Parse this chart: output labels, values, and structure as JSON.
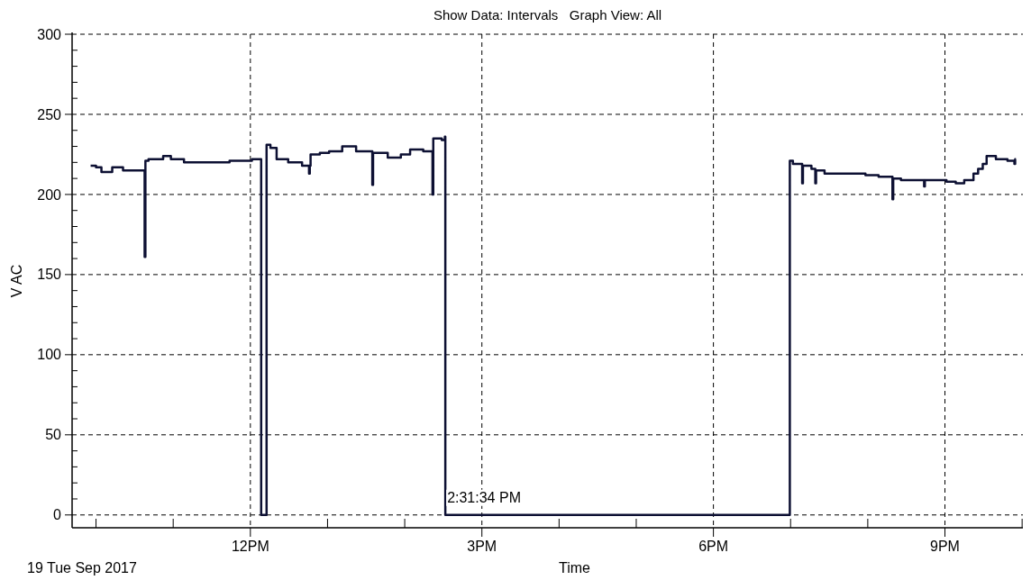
{
  "chart_data": {
    "type": "step",
    "title": "Show Data: Intervals   Graph View: All",
    "xlabel": "Time",
    "ylabel": "V AC",
    "xlim": [
      "2017-09-19T09:41:24",
      "2017-09-19T22:00:36"
    ],
    "ylim": [
      -8,
      300
    ],
    "xticks": [
      {
        "value": "2017-09-19T10:00",
        "label": null
      },
      {
        "value": "2017-09-19T11:00",
        "label": null
      },
      {
        "value": "2017-09-19T12:00",
        "label": "12PM"
      },
      {
        "value": "2017-09-19T13:00",
        "label": null
      },
      {
        "value": "2017-09-19T14:00",
        "label": null
      },
      {
        "value": "2017-09-19T15:00",
        "label": "3PM"
      },
      {
        "value": "2017-09-19T16:00",
        "label": null
      },
      {
        "value": "2017-09-19T17:00",
        "label": null
      },
      {
        "value": "2017-09-19T18:00",
        "label": "6PM"
      },
      {
        "value": "2017-09-19T19:00",
        "label": null
      },
      {
        "value": "2017-09-19T20:00",
        "label": null
      },
      {
        "value": "2017-09-19T21:00",
        "label": "9PM"
      },
      {
        "value": "2017-09-19T22:00",
        "label": null
      }
    ],
    "yticks": [
      0,
      {
        "value": 10,
        "label": null
      },
      {
        "value": 20,
        "label": null
      },
      {
        "value": 30,
        "label": null
      },
      {
        "value": 40,
        "label": null
      },
      50,
      {
        "value": 60,
        "label": null
      },
      {
        "value": 70,
        "label": null
      },
      {
        "value": 80,
        "label": null
      },
      {
        "value": 90,
        "label": null
      },
      100,
      {
        "value": 110,
        "label": null
      },
      {
        "value": 120,
        "label": null
      },
      {
        "value": 130,
        "label": null
      },
      {
        "value": 140,
        "label": null
      },
      150,
      {
        "value": 160,
        "label": null
      },
      {
        "value": 170,
        "label": null
      },
      {
        "value": 180,
        "label": null
      },
      {
        "value": 190,
        "label": null
      },
      200,
      {
        "value": 210,
        "label": null
      },
      {
        "value": 220,
        "label": null
      },
      {
        "value": 230,
        "label": null
      },
      {
        "value": 240,
        "label": null
      },
      250,
      {
        "value": 260,
        "label": null
      },
      {
        "value": 270,
        "label": null
      },
      {
        "value": 280,
        "label": null
      },
      {
        "value": 290,
        "label": null
      },
      300
    ],
    "grid": true,
    "marker": "none",
    "line_style": "solid",
    "series": [
      {
        "color": "#0d1033",
        "x": [
          "2017-09-19T09:55:48",
          "2017-09-19T10:00:00",
          "2017-09-19T10:04:12",
          "2017-09-19T10:12:36",
          "2017-09-19T10:21:00",
          "2017-09-19T10:37:12",
          "2017-09-19T10:37:48",
          "2017-09-19T10:38:24",
          "2017-09-19T10:40:48",
          "2017-09-19T10:52:12",
          "2017-09-19T10:58:12",
          "2017-09-19T11:08:24",
          "2017-09-19T11:26:24",
          "2017-09-19T11:43:48",
          "2017-09-19T12:01:12",
          "2017-09-19T12:08:24",
          "2017-09-19T12:12:36",
          "2017-09-19T12:15:36",
          "2017-09-19T12:20:24",
          "2017-09-19T12:29:24",
          "2017-09-19T12:40:12",
          "2017-09-19T12:45:36",
          "2017-09-19T12:46:12",
          "2017-09-19T12:46:48",
          "2017-09-19T12:54:00",
          "2017-09-19T13:01:12",
          "2017-09-19T13:11:24",
          "2017-09-19T13:22:12",
          "2017-09-19T13:34:48",
          "2017-09-19T13:35:24",
          "2017-09-19T13:46:48",
          "2017-09-19T13:57:00",
          "2017-09-19T14:04:12",
          "2017-09-19T14:14:24",
          "2017-09-19T14:21:36",
          "2017-09-19T14:22:12",
          "2017-09-19T14:28:48",
          "2017-09-19T14:31:12",
          "2017-09-19T14:31:34",
          "2017-09-19T18:59:24",
          "2017-09-19T19:01:48",
          "2017-09-19T19:09:00",
          "2017-09-19T19:09:36",
          "2017-09-19T19:16:12",
          "2017-09-19T19:19:12",
          "2017-09-19T19:19:48",
          "2017-09-19T19:26:24",
          "2017-09-19T19:40:48",
          "2017-09-19T19:58:12",
          "2017-09-19T20:08:24",
          "2017-09-19T20:19:12",
          "2017-09-19T20:19:48",
          "2017-09-19T20:25:48",
          "2017-09-19T20:43:48",
          "2017-09-19T20:44:24",
          "2017-09-19T21:01:12",
          "2017-09-19T21:08:24",
          "2017-09-19T21:15:00",
          "2017-09-19T21:22:12",
          "2017-09-19T21:25:48",
          "2017-09-19T21:29:24",
          "2017-09-19T21:32:24",
          "2017-09-19T21:39:36",
          "2017-09-19T21:48:36",
          "2017-09-19T21:54:00",
          "2017-09-19T21:54:36",
          "2017-09-19T21:55:12"
        ],
        "values": [
          218,
          217,
          214,
          217,
          215,
          215,
          161,
          221,
          222,
          224,
          222,
          220,
          220,
          221,
          222,
          0,
          231,
          229,
          222,
          220,
          218,
          213,
          218,
          225,
          226,
          227,
          230,
          227,
          206,
          226,
          223,
          225,
          228,
          227,
          200,
          235,
          234,
          236,
          0,
          221,
          219,
          207,
          218,
          216,
          207,
          215,
          213,
          213,
          212,
          211,
          197,
          210,
          209,
          205,
          209,
          208,
          207,
          209,
          213,
          216,
          219,
          224,
          222,
          221,
          219,
          222,
          222
        ]
      }
    ],
    "annotations": [
      {
        "text": "2:31:34 PM",
        "x": "2017-09-19T14:31:34",
        "y": 0
      },
      "19 Tue Sep 2017"
    ]
  }
}
